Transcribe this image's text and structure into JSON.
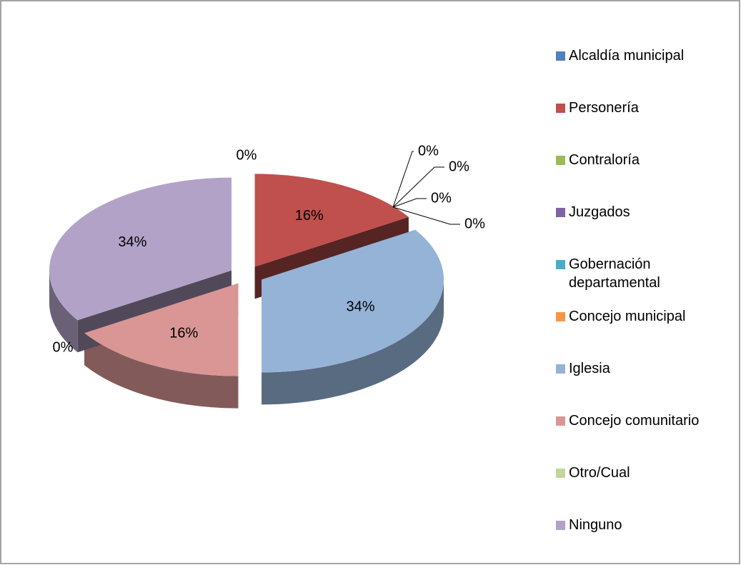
{
  "chart_data": {
    "type": "pie",
    "categories": [
      "Alcaldía municipal",
      "Personería",
      "Contraloría",
      "Juzgados",
      "Gobernación departamental",
      "Concejo municipal",
      "Iglesia",
      "Concejo comunitario",
      "Otro/Cual",
      "Ninguno"
    ],
    "values": [
      0,
      16,
      0,
      0,
      0,
      0,
      34,
      16,
      0,
      34
    ],
    "value_labels": [
      "0%",
      "16%",
      "0%",
      "0%",
      "0%",
      "0%",
      "34%",
      "16%",
      "0%",
      "34%"
    ],
    "colors": [
      "#4f81bd",
      "#c0504d",
      "#9bbb59",
      "#8064a2",
      "#4bacc6",
      "#f79646",
      "#95b3d7",
      "#d99694",
      "#c3d69b",
      "#b3a2c7"
    ],
    "legend": "right"
  }
}
